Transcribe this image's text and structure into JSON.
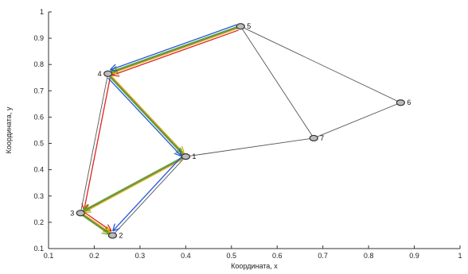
{
  "chart_data": {
    "type": "network",
    "xlabel": "Координата, x",
    "ylabel": "Координата, y",
    "xlim": [
      0.1,
      1.0
    ],
    "ylim": [
      0.1,
      1.0
    ],
    "xticks": [
      "0.1",
      "0.2",
      "0.3",
      "0.4",
      "0.5",
      "0.6",
      "0.7",
      "0.8",
      "0.9",
      "1"
    ],
    "yticks": [
      "0.1",
      "0.2",
      "0.3",
      "0.4",
      "0.5",
      "0.6",
      "0.7",
      "0.8",
      "0.9",
      "1"
    ],
    "grid": false,
    "nodes": [
      {
        "label": "1",
        "x": 0.4,
        "y": 0.45
      },
      {
        "label": "2",
        "x": 0.24,
        "y": 0.15
      },
      {
        "label": "3",
        "x": 0.17,
        "y": 0.235
      },
      {
        "label": "4",
        "x": 0.23,
        "y": 0.765
      },
      {
        "label": "5",
        "x": 0.52,
        "y": 0.945
      },
      {
        "label": "6",
        "x": 0.87,
        "y": 0.655
      },
      {
        "label": "7",
        "x": 0.68,
        "y": 0.52
      }
    ],
    "edges": [
      {
        "from": "1",
        "to": "2"
      },
      {
        "from": "2",
        "to": "3"
      },
      {
        "from": "3",
        "to": "4"
      },
      {
        "from": "4",
        "to": "5"
      },
      {
        "from": "5",
        "to": "6"
      },
      {
        "from": "6",
        "to": "7"
      },
      {
        "from": "7",
        "to": "1"
      },
      {
        "from": "7",
        "to": "5"
      },
      {
        "from": "1",
        "to": "3"
      },
      {
        "from": "1",
        "to": "4"
      }
    ],
    "routes": [
      {
        "color": "#dd2222",
        "path": [
          "5",
          "4",
          "3",
          "2"
        ]
      },
      {
        "color": "#d8b000",
        "path": [
          "5",
          "4",
          "1",
          "3",
          "2"
        ]
      },
      {
        "color": "#55aa22",
        "path": [
          "5",
          "4",
          "1",
          "3",
          "2"
        ]
      },
      {
        "color": "#2255dd",
        "path": [
          "5",
          "4",
          "1",
          "2"
        ]
      }
    ]
  }
}
